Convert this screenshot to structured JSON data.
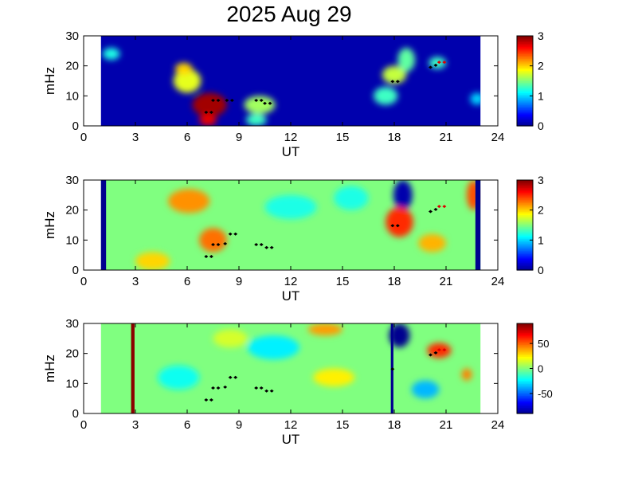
{
  "title": "2025 Aug 29",
  "colors": {
    "background": "#000090",
    "jet": [
      "#00008f",
      "#0000ff",
      "#0080ff",
      "#00ffff",
      "#80ff80",
      "#ffff00",
      "#ff8000",
      "#ff0000",
      "#800000"
    ],
    "marker_black": "#000000",
    "marker_red": "#dd0000"
  },
  "chart_data": [
    {
      "type": "heatmap",
      "xlabel": "UT",
      "ylabel": "mHz",
      "xlim": [
        0,
        24
      ],
      "ylim": [
        0,
        30
      ],
      "xticks": [
        0,
        3,
        6,
        9,
        12,
        15,
        18,
        21,
        24
      ],
      "yticks": [
        0,
        10,
        20,
        30
      ],
      "data_extent_ut": [
        1,
        23
      ],
      "background_value": 0.1,
      "colorbar": {
        "min": 0,
        "max": 3,
        "ticks": [
          0,
          1,
          2,
          3
        ]
      },
      "features": [
        {
          "ut": 7.3,
          "f": 7,
          "rx": 1.0,
          "ry": 4,
          "v": 2.9
        },
        {
          "ut": 7.2,
          "f": 2,
          "rx": 0.5,
          "ry": 2,
          "v": 2.7
        },
        {
          "ut": 6.0,
          "f": 15,
          "rx": 0.8,
          "ry": 4,
          "v": 1.8
        },
        {
          "ut": 5.8,
          "f": 19,
          "rx": 0.5,
          "ry": 2,
          "v": 2.0
        },
        {
          "ut": 10.2,
          "f": 7,
          "rx": 0.9,
          "ry": 3,
          "v": 1.6
        },
        {
          "ut": 10.0,
          "f": 2,
          "rx": 0.6,
          "ry": 2,
          "v": 1.3
        },
        {
          "ut": 18.0,
          "f": 17,
          "rx": 0.7,
          "ry": 3,
          "v": 1.7
        },
        {
          "ut": 17.5,
          "f": 10,
          "rx": 0.7,
          "ry": 3,
          "v": 1.3
        },
        {
          "ut": 18.7,
          "f": 22,
          "rx": 0.5,
          "ry": 4,
          "v": 1.4
        },
        {
          "ut": 1.6,
          "f": 24,
          "rx": 0.5,
          "ry": 2,
          "v": 1.2
        },
        {
          "ut": 20.5,
          "f": 21,
          "rx": 0.5,
          "ry": 2,
          "v": 1.3
        },
        {
          "ut": 22.8,
          "f": 9,
          "rx": 0.4,
          "ry": 2,
          "v": 1.0
        }
      ],
      "markers": [
        {
          "ut": 7.1,
          "f": 4.5
        },
        {
          "ut": 7.4,
          "f": 4.5
        },
        {
          "ut": 7.5,
          "f": 8.5
        },
        {
          "ut": 7.8,
          "f": 8.5
        },
        {
          "ut": 8.3,
          "f": 8.5
        },
        {
          "ut": 8.6,
          "f": 8.5
        },
        {
          "ut": 10.0,
          "f": 8.5
        },
        {
          "ut": 10.3,
          "f": 8.5
        },
        {
          "ut": 10.5,
          "f": 7.5
        },
        {
          "ut": 10.8,
          "f": 7.5
        },
        {
          "ut": 17.9,
          "f": 14.8
        },
        {
          "ut": 18.2,
          "f": 14.8
        },
        {
          "ut": 20.1,
          "f": 19.5
        },
        {
          "ut": 20.4,
          "f": 20.2
        },
        {
          "ut": 20.6,
          "f": 21.2,
          "red": true
        },
        {
          "ut": 20.9,
          "f": 21.2,
          "red": true
        }
      ]
    },
    {
      "type": "heatmap",
      "xlabel": "UT",
      "ylabel": "mHz",
      "xlim": [
        0,
        24
      ],
      "ylim": [
        0,
        30
      ],
      "xticks": [
        0,
        3,
        6,
        9,
        12,
        15,
        18,
        21,
        24
      ],
      "yticks": [
        0,
        10,
        20,
        30
      ],
      "data_extent_ut": [
        1,
        23
      ],
      "background_value": 1.5,
      "colorbar": {
        "min": 0,
        "max": 3,
        "ticks": [
          0,
          1,
          2,
          3
        ]
      },
      "edge_strips": [
        {
          "ut0": 1.0,
          "ut1": 1.3,
          "v": 0
        },
        {
          "ut0": 22.7,
          "ut1": 23.0,
          "v": 0
        }
      ],
      "features": [
        {
          "ut": 18.5,
          "f": 25,
          "rx": 0.55,
          "ry": 5,
          "v": 0.1
        },
        {
          "ut": 18.3,
          "f": 16,
          "rx": 0.8,
          "ry": 5,
          "v": 2.5
        },
        {
          "ut": 6.1,
          "f": 23,
          "rx": 1.2,
          "ry": 4,
          "v": 2.2
        },
        {
          "ut": 7.5,
          "f": 10,
          "rx": 0.8,
          "ry": 4,
          "v": 2.3
        },
        {
          "ut": 4.0,
          "f": 3,
          "rx": 1.0,
          "ry": 3,
          "v": 2.0
        },
        {
          "ut": 12.0,
          "f": 21,
          "rx": 1.5,
          "ry": 4,
          "v": 1.2
        },
        {
          "ut": 20.2,
          "f": 9,
          "rx": 0.8,
          "ry": 3,
          "v": 2.1
        },
        {
          "ut": 22.6,
          "f": 25,
          "rx": 0.4,
          "ry": 5,
          "v": 2.4
        },
        {
          "ut": 15.5,
          "f": 24,
          "rx": 1.0,
          "ry": 4,
          "v": 1.2
        }
      ],
      "markers": [
        {
          "ut": 7.1,
          "f": 4.5
        },
        {
          "ut": 7.4,
          "f": 4.5
        },
        {
          "ut": 7.5,
          "f": 8.5
        },
        {
          "ut": 7.8,
          "f": 8.5
        },
        {
          "ut": 8.2,
          "f": 8.8
        },
        {
          "ut": 8.5,
          "f": 12
        },
        {
          "ut": 8.8,
          "f": 12
        },
        {
          "ut": 10.0,
          "f": 8.5
        },
        {
          "ut": 10.3,
          "f": 8.5
        },
        {
          "ut": 10.6,
          "f": 7.5
        },
        {
          "ut": 10.9,
          "f": 7.5
        },
        {
          "ut": 17.9,
          "f": 14.8
        },
        {
          "ut": 18.2,
          "f": 14.8
        },
        {
          "ut": 20.1,
          "f": 19.5
        },
        {
          "ut": 20.4,
          "f": 20.2
        },
        {
          "ut": 20.6,
          "f": 21.2,
          "red": true
        },
        {
          "ut": 20.9,
          "f": 21.2,
          "red": true
        }
      ]
    },
    {
      "type": "heatmap",
      "xlabel": "UT",
      "ylabel": "mHz",
      "xlim": [
        0,
        24
      ],
      "ylim": [
        0,
        30
      ],
      "xticks": [
        0,
        3,
        6,
        9,
        12,
        15,
        18,
        21,
        24
      ],
      "yticks": [
        0,
        10,
        20,
        30
      ],
      "data_extent_ut": [
        1,
        23
      ],
      "background_value": 0.05,
      "colorbar": {
        "min": -90,
        "max": 90,
        "ticks": [
          -50,
          0,
          50
        ]
      },
      "edge_strips": [
        {
          "ut0": 2.75,
          "ut1": 2.95,
          "v": 88
        },
        {
          "ut0": 17.8,
          "ut1": 17.95,
          "v": -90
        }
      ],
      "features": [
        {
          "ut": 18.3,
          "f": 26,
          "rx": 0.6,
          "ry": 4,
          "v": -90
        },
        {
          "ut": 20.6,
          "f": 21,
          "rx": 0.7,
          "ry": 2.5,
          "v": 60
        },
        {
          "ut": 14.0,
          "f": 28,
          "rx": 1.0,
          "ry": 2,
          "v": 40
        },
        {
          "ut": 14.5,
          "f": 12,
          "rx": 1.2,
          "ry": 3,
          "v": 25
        },
        {
          "ut": 11.0,
          "f": 22,
          "rx": 1.5,
          "ry": 4,
          "v": -25
        },
        {
          "ut": 5.5,
          "f": 12,
          "rx": 1.2,
          "ry": 4,
          "v": -20
        },
        {
          "ut": 19.8,
          "f": 8,
          "rx": 0.8,
          "ry": 3,
          "v": -35
        },
        {
          "ut": 22.2,
          "f": 13,
          "rx": 0.3,
          "ry": 2,
          "v": 45
        },
        {
          "ut": 8.5,
          "f": 25,
          "rx": 1.0,
          "ry": 3,
          "v": 15
        }
      ],
      "markers": [
        {
          "ut": 7.1,
          "f": 4.5
        },
        {
          "ut": 7.4,
          "f": 4.5
        },
        {
          "ut": 7.5,
          "f": 8.5
        },
        {
          "ut": 7.8,
          "f": 8.5
        },
        {
          "ut": 8.2,
          "f": 8.8
        },
        {
          "ut": 8.5,
          "f": 12
        },
        {
          "ut": 8.8,
          "f": 12
        },
        {
          "ut": 10.0,
          "f": 8.5
        },
        {
          "ut": 10.3,
          "f": 8.5
        },
        {
          "ut": 10.6,
          "f": 7.5
        },
        {
          "ut": 10.9,
          "f": 7.5
        },
        {
          "ut": 17.9,
          "f": 14.8
        },
        {
          "ut": 20.1,
          "f": 19.5
        },
        {
          "ut": 20.4,
          "f": 20.2
        },
        {
          "ut": 20.6,
          "f": 21.2,
          "red": true
        },
        {
          "ut": 20.9,
          "f": 21.2,
          "red": true
        }
      ]
    }
  ]
}
